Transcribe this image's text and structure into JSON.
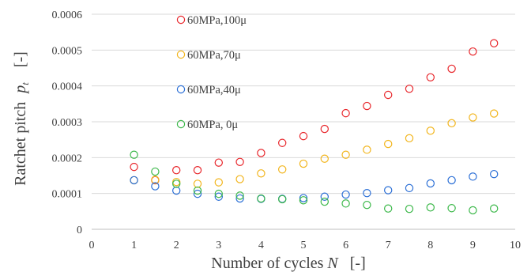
{
  "chart_data": {
    "type": "scatter",
    "title": "",
    "xlabel": "Number of cycles",
    "xlabel_var": "N",
    "xlabel_unit": "[-]",
    "ylabel": "Ratchet pitch",
    "ylabel_var": "p",
    "ylabel_var_sub": "t",
    "ylabel_unit": "[-]",
    "xlim": [
      0,
      10
    ],
    "ylim": [
      0,
      0.0006
    ],
    "x_ticks": [
      "0",
      "1",
      "2",
      "3",
      "4",
      "5",
      "6",
      "7",
      "8",
      "9",
      "10"
    ],
    "y_ticks": [
      "0",
      "0.0001",
      "0.0002",
      "0.0003",
      "0.0004",
      "0.0005",
      "0.0006"
    ],
    "grid": "horizontal",
    "legend_position": "top-center inside",
    "marker": "open-circle",
    "x": [
      1,
      1.5,
      2,
      2.5,
      3,
      3.5,
      4,
      4.5,
      5,
      5.5,
      6,
      6.5,
      7,
      7.5,
      8,
      8.5,
      9,
      9.5
    ],
    "series": [
      {
        "name": "60MPa,100μ",
        "color": "#e8262b",
        "values": [
          0.000174,
          0.000137,
          0.000165,
          0.000165,
          0.000186,
          0.000188,
          0.000213,
          0.000241,
          0.00026,
          0.00028,
          0.000324,
          0.000344,
          0.000375,
          0.000392,
          0.000424,
          0.000448,
          0.000496,
          0.000519
        ]
      },
      {
        "name": "60MPa,70μ",
        "color": "#f2b51c",
        "values": [
          0.000137,
          0.000138,
          0.000132,
          0.000127,
          0.000131,
          0.00014,
          0.000156,
          0.000167,
          0.000183,
          0.000197,
          0.000208,
          0.000222,
          0.000238,
          0.000254,
          0.000275,
          0.000296,
          0.000312,
          0.000323
        ]
      },
      {
        "name": "60MPa,40μ",
        "color": "#2b6fd6",
        "values": [
          0.000137,
          0.00012,
          0.000108,
          9.9e-05,
          9.1e-05,
          8.6e-05,
          8.5e-05,
          8.5e-05,
          8.7e-05,
          9.1e-05,
          9.7e-05,
          0.000101,
          0.000109,
          0.000115,
          0.000128,
          0.000137,
          0.000147,
          0.000154
        ]
      },
      {
        "name": "60MPa, 0μ",
        "color": "#3cb84a",
        "values": [
          0.000208,
          0.000161,
          0.000127,
          0.000108,
          9.9e-05,
          9.4e-05,
          8.6e-05,
          8.4e-05,
          8.1e-05,
          7.7e-05,
          7.2e-05,
          6.8e-05,
          5.8e-05,
          5.7e-05,
          6.1e-05,
          5.9e-05,
          5.3e-05,
          5.8e-05
        ]
      }
    ]
  }
}
